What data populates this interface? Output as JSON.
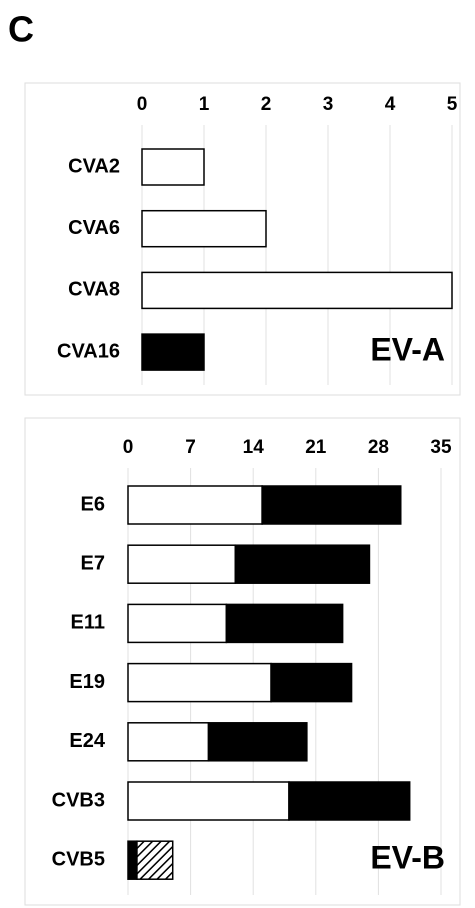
{
  "panel_label": "C",
  "chart_data": [
    {
      "type": "bar",
      "orientation": "horizontal",
      "stacked": true,
      "grid": true,
      "categories": [
        "CVA2",
        "CVA6",
        "CVA8",
        "CVA16"
      ],
      "series": [
        {
          "color": "#ffffff",
          "values": [
            1,
            2,
            5,
            0
          ]
        },
        {
          "color": "#000000",
          "values": [
            0,
            0,
            0,
            1
          ]
        }
      ],
      "xlim": [
        0,
        5
      ],
      "xticks": [
        0,
        1,
        2,
        3,
        4,
        5
      ],
      "annotation": "EV-A"
    },
    {
      "type": "bar",
      "orientation": "horizontal",
      "stacked": true,
      "grid": true,
      "categories": [
        "E6",
        "E7",
        "E11",
        "E19",
        "E24",
        "CVB3",
        "CVB5"
      ],
      "series": [
        {
          "color": "#ffffff",
          "values": [
            15,
            12,
            11,
            16,
            9,
            18,
            0
          ]
        },
        {
          "color": "#000000",
          "values": [
            15.5,
            15,
            13,
            9,
            11,
            13.5,
            1
          ]
        },
        {
          "color": "#ffffff",
          "hatch": true,
          "values": [
            0,
            0,
            0,
            0,
            0,
            0,
            4
          ]
        }
      ],
      "xlim": [
        0,
        35
      ],
      "xticks": [
        0,
        7,
        14,
        21,
        28,
        35
      ],
      "annotation": "EV-B"
    }
  ]
}
